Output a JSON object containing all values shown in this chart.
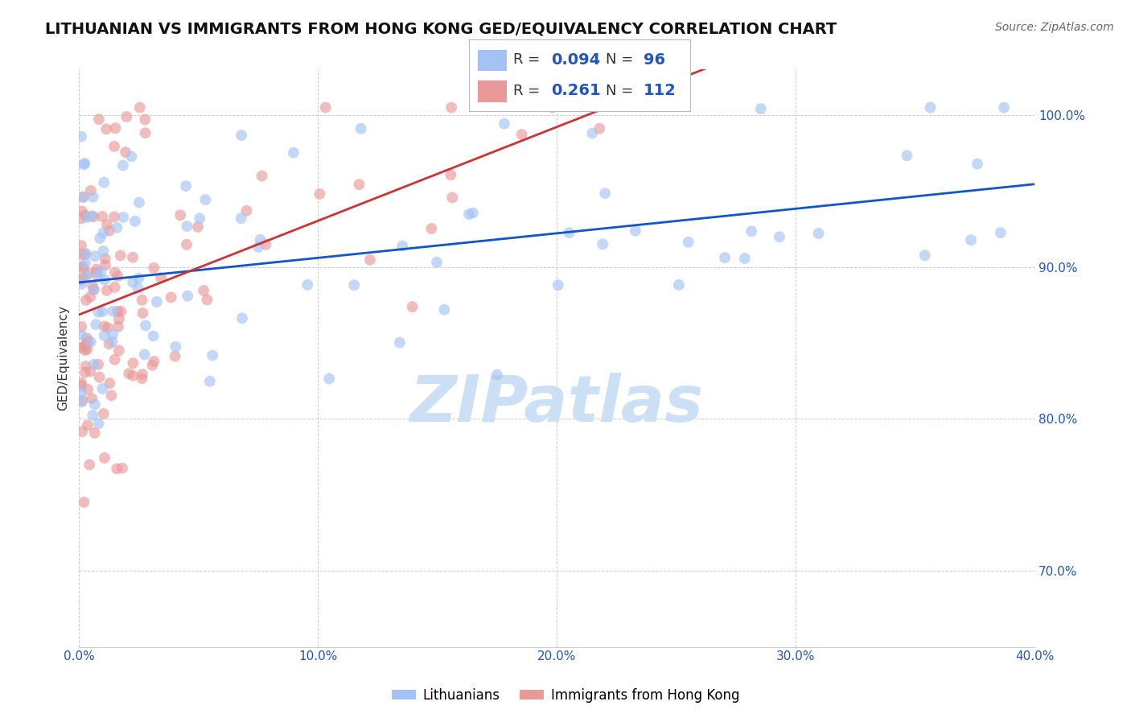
{
  "title": "LITHUANIAN VS IMMIGRANTS FROM HONG KONG GED/EQUIVALENCY CORRELATION CHART",
  "source": "Source: ZipAtlas.com",
  "ylabel": "GED/Equivalency",
  "legend_blue_label": "Lithuanians",
  "legend_pink_label": "Immigrants from Hong Kong",
  "r_blue": "0.094",
  "n_blue": "96",
  "r_pink": "0.261",
  "n_pink": "112",
  "blue_color": "#a4c2f4",
  "pink_color": "#ea9999",
  "blue_line_color": "#1155cc",
  "pink_line_color": "#cc3333",
  "title_fontsize": 14,
  "source_fontsize": 10,
  "background_color": "#ffffff",
  "scatter_alpha": 0.65,
  "scatter_size": 100,
  "xlim": [
    0.0,
    0.4
  ],
  "ylim": [
    0.65,
    1.03
  ],
  "xtick_positions": [
    0.0,
    0.1,
    0.2,
    0.3,
    0.4
  ],
  "ytick_positions": [
    0.7,
    0.8,
    0.9,
    1.0
  ],
  "ytick_labels": [
    "70.0%",
    "80.0%",
    "90.0%",
    "100.0%"
  ],
  "xtick_labels": [
    "0.0%",
    "10.0%",
    "20.0%",
    "30.0%",
    "40.0%"
  ],
  "watermark": "ZIPatlas",
  "watermark_color": "#cce0f5"
}
